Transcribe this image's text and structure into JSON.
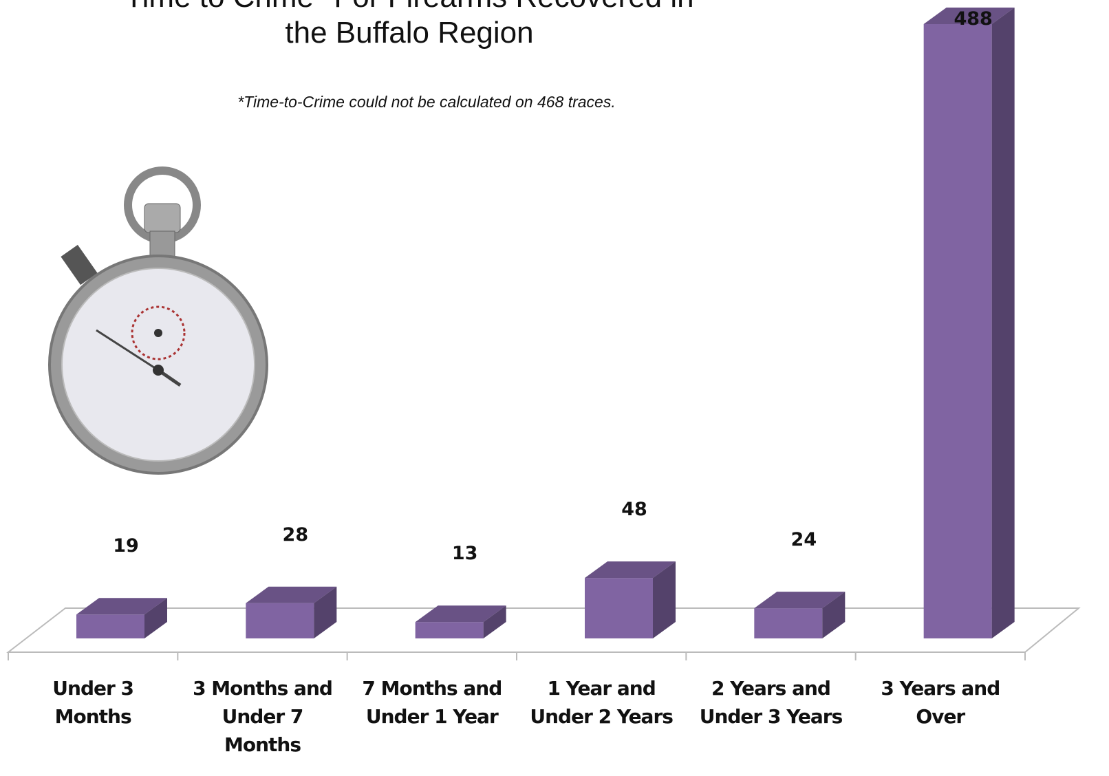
{
  "chart_data": {
    "type": "bar3d",
    "title": "Time to Crime* For Firearms Recovered in the Buffalo Region",
    "note": "*Time-to-Crime could not be calculated on 468 traces.",
    "categories": [
      "Under 3 Months",
      "3 Months and Under 7 Months",
      "7 Months and Under 1 Year",
      "1 Year and Under 2 Years",
      "2 Years and Under 3 Years",
      "3 Years and Over"
    ],
    "values": [
      19,
      28,
      13,
      48,
      24,
      488
    ],
    "color": "#8064a2"
  }
}
